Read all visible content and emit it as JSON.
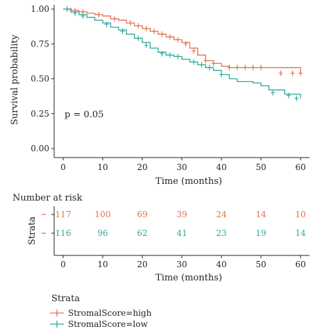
{
  "chart_data": {
    "type": "line",
    "subtype": "kaplan-meier",
    "ylabel": "Survival probability",
    "xlabel": "Time (months)",
    "xlim": [
      0,
      60
    ],
    "ylim": [
      0,
      1
    ],
    "x_ticks": [
      "0",
      "10",
      "20",
      "30",
      "40",
      "50",
      "60"
    ],
    "x_tick_values": [
      0,
      10,
      20,
      30,
      40,
      50,
      60
    ],
    "y_ticks": [
      "0.00",
      "0.25",
      "0.50",
      "0.75",
      "1.00"
    ],
    "y_tick_values": [
      0,
      0.25,
      0.5,
      0.75,
      1.0
    ],
    "annotation": "p = 0.05",
    "legend_title": "Strata",
    "legend_position": "bottom",
    "series": [
      {
        "name": "StromalScore=high",
        "color": "#e07050",
        "x": [
          0,
          2,
          4,
          6,
          8,
          10,
          12,
          14,
          16,
          18,
          20,
          22,
          24,
          26,
          28,
          30,
          32,
          34,
          36,
          38,
          40,
          42,
          50,
          60
        ],
        "y": [
          1.0,
          0.99,
          0.98,
          0.97,
          0.96,
          0.95,
          0.93,
          0.92,
          0.9,
          0.88,
          0.86,
          0.84,
          0.82,
          0.8,
          0.78,
          0.76,
          0.72,
          0.67,
          0.63,
          0.61,
          0.59,
          0.58,
          0.58,
          0.54
        ],
        "censor_x": [
          1,
          2,
          3,
          5,
          9,
          13,
          17,
          19,
          21,
          23,
          25,
          27,
          29,
          31,
          33,
          36,
          38,
          42,
          44,
          46,
          48,
          50,
          55,
          58,
          60
        ],
        "censor_y": [
          1.0,
          0.99,
          0.99,
          0.98,
          0.96,
          0.93,
          0.9,
          0.88,
          0.86,
          0.84,
          0.82,
          0.8,
          0.78,
          0.75,
          0.7,
          0.63,
          0.61,
          0.58,
          0.58,
          0.58,
          0.58,
          0.58,
          0.54,
          0.54,
          0.54
        ]
      },
      {
        "name": "StromalScore=low",
        "color": "#2aa89a",
        "x": [
          0,
          2,
          4,
          6,
          8,
          10,
          12,
          14,
          16,
          18,
          20,
          22,
          24,
          26,
          28,
          30,
          32,
          34,
          36,
          38,
          40,
          42,
          44,
          48,
          50,
          52,
          56,
          60
        ],
        "y": [
          1.0,
          0.98,
          0.96,
          0.94,
          0.92,
          0.9,
          0.87,
          0.85,
          0.82,
          0.79,
          0.76,
          0.72,
          0.69,
          0.67,
          0.66,
          0.64,
          0.62,
          0.6,
          0.58,
          0.56,
          0.53,
          0.5,
          0.48,
          0.47,
          0.45,
          0.42,
          0.39,
          0.36
        ],
        "censor_x": [
          1,
          3,
          5,
          11,
          15,
          19,
          21,
          25,
          27,
          29,
          33,
          35,
          37,
          40,
          53,
          57,
          59
        ],
        "censor_y": [
          1.0,
          0.97,
          0.95,
          0.89,
          0.84,
          0.79,
          0.74,
          0.68,
          0.67,
          0.66,
          0.62,
          0.6,
          0.58,
          0.53,
          0.4,
          0.38,
          0.36
        ]
      }
    ],
    "risk_table": {
      "title": "Number at risk",
      "strata_label": "Strata",
      "xlabel": "Time (months)",
      "times": [
        0,
        10,
        20,
        30,
        40,
        50,
        60
      ],
      "x_ticks": [
        "0",
        "10",
        "20",
        "30",
        "40",
        "50",
        "60"
      ],
      "rows": [
        {
          "name": "StromalScore=high",
          "color": "#e07050",
          "values": [
            "117",
            "100",
            "69",
            "39",
            "24",
            "14",
            "10"
          ]
        },
        {
          "name": "StromalScore=low",
          "color": "#2aa89a",
          "values": [
            "116",
            "96",
            "62",
            "41",
            "23",
            "19",
            "14"
          ]
        }
      ]
    }
  }
}
